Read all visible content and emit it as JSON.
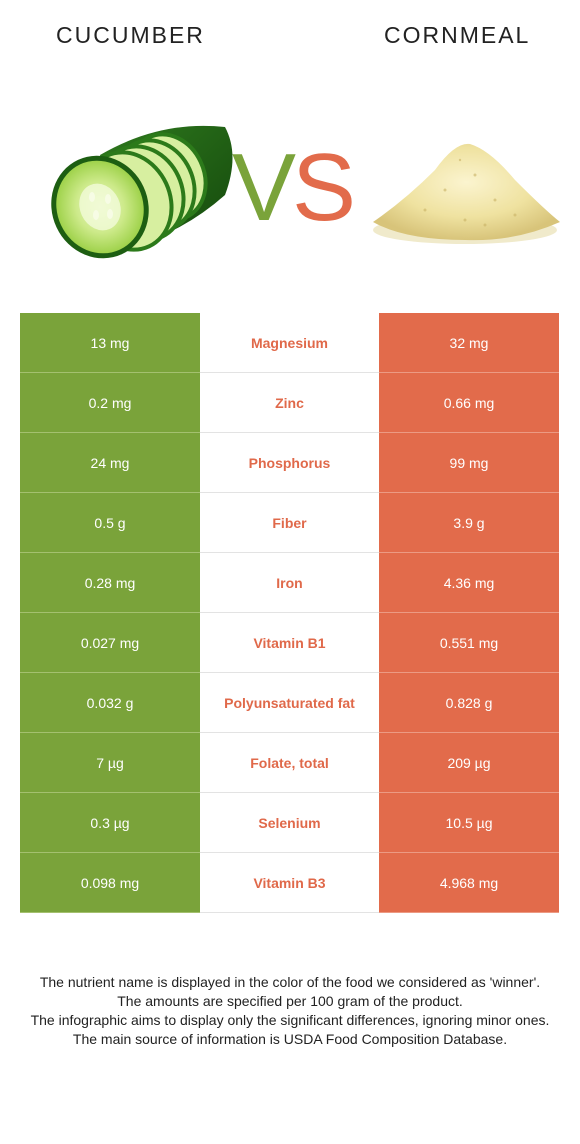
{
  "header": {
    "left_food": "CUCUMBER",
    "right_food": "CORNMEAL",
    "vs_v": "V",
    "vs_s": "S"
  },
  "colors": {
    "left_winner": "#7aa33a",
    "right_winner": "#e26b4b",
    "nutrient_text": "#e0694a"
  },
  "rows": [
    {
      "left": "13 mg",
      "nutrient": "Magnesium",
      "right": "32 mg"
    },
    {
      "left": "0.2 mg",
      "nutrient": "Zinc",
      "right": "0.66 mg"
    },
    {
      "left": "24 mg",
      "nutrient": "Phosphorus",
      "right": "99 mg"
    },
    {
      "left": "0.5 g",
      "nutrient": "Fiber",
      "right": "3.9 g"
    },
    {
      "left": "0.28 mg",
      "nutrient": "Iron",
      "right": "4.36 mg"
    },
    {
      "left": "0.027 mg",
      "nutrient": "Vitamin B1",
      "right": "0.551 mg"
    },
    {
      "left": "0.032 g",
      "nutrient": "Polyunsaturated fat",
      "right": "0.828 g"
    },
    {
      "left": "7 µg",
      "nutrient": "Folate, total",
      "right": "209 µg"
    },
    {
      "left": "0.3 µg",
      "nutrient": "Selenium",
      "right": "10.5 µg"
    },
    {
      "left": "0.098 mg",
      "nutrient": "Vitamin B3",
      "right": "4.968 mg"
    }
  ],
  "footer": [
    "The nutrient name is displayed in the color of the food we considered as 'winner'.",
    "The amounts are specified per 100 gram of the product.",
    "The infographic aims to display only the significant differences, ignoring minor ones.",
    "The main source of information is USDA Food Composition Database."
  ]
}
